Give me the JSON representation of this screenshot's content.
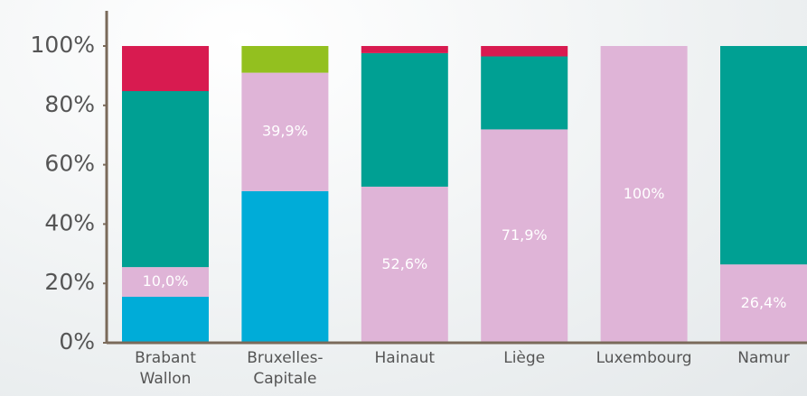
{
  "chart_data": {
    "type": "stacked-bar",
    "categories": [
      "Brabant Wallon",
      "Bruxelles-Capitale",
      "Hainaut",
      "Liège",
      "Luxembourg",
      "Namur"
    ],
    "series": [
      {
        "color": "#00acd8",
        "values": [
          15.5,
          51.1,
          null,
          null,
          null,
          null
        ]
      },
      {
        "color": "#dfb4d7",
        "values": [
          10.0,
          39.9,
          52.6,
          71.9,
          100,
          26.4
        ],
        "value_labels": [
          "10,0%",
          "39,9%",
          "52,6%",
          "71,9%",
          "100%",
          "26,4%"
        ]
      },
      {
        "color": "#00a093",
        "values": [
          59.3,
          null,
          45.0,
          24.6,
          null,
          73.6
        ]
      },
      {
        "color": "#d81b50",
        "values": [
          15.2,
          null,
          2.4,
          3.5,
          null,
          null
        ]
      },
      {
        "color": "#93c01f",
        "values": [
          null,
          9.0,
          null,
          null,
          null,
          null
        ]
      }
    ],
    "ylim": [
      0,
      100
    ],
    "yticks": [
      {
        "value": 0,
        "label": "0%"
      },
      {
        "value": 20,
        "label": "20%"
      },
      {
        "value": 40,
        "label": "40%"
      },
      {
        "value": 60,
        "label": "60%"
      },
      {
        "value": 80,
        "label": "80%"
      },
      {
        "value": 100,
        "label": "100%"
      }
    ],
    "grid": false
  }
}
